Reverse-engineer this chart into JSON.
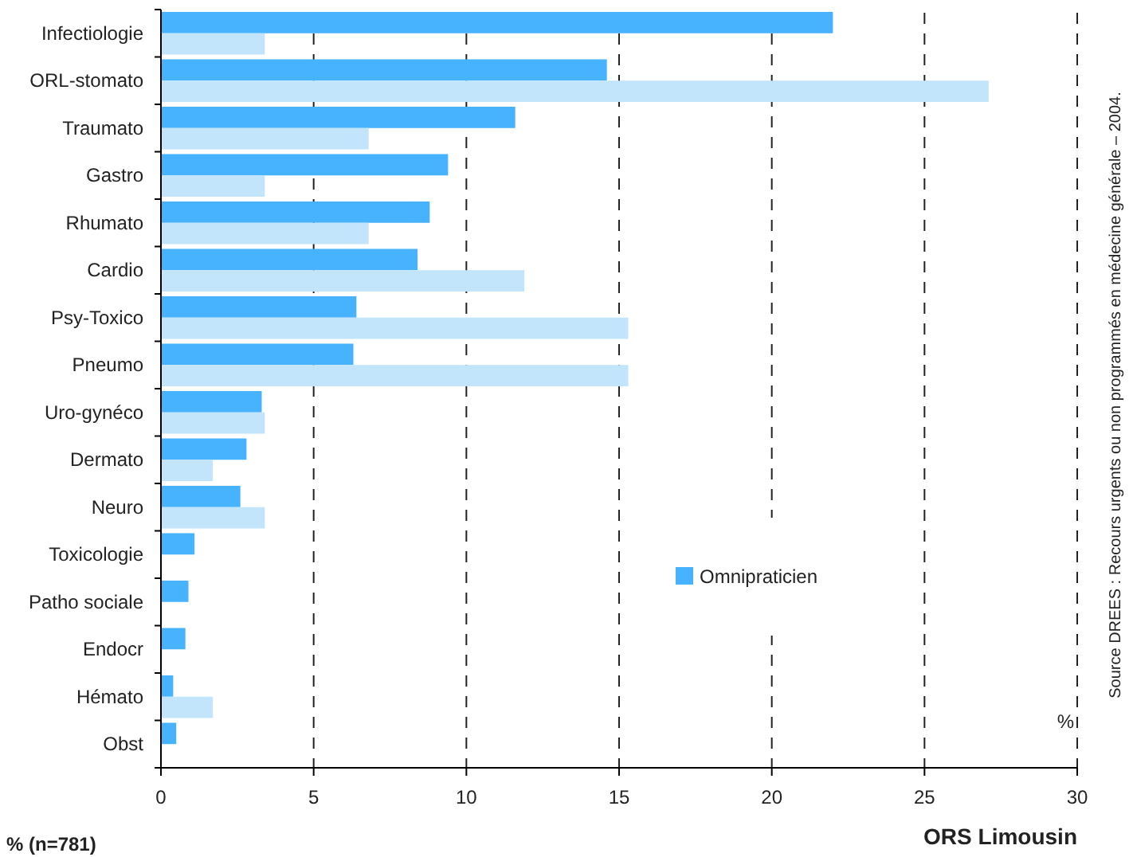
{
  "chart_data": {
    "type": "bar",
    "orientation": "horizontal",
    "categories": [
      "Infectiologie",
      "ORL-stomato",
      "Traumato",
      "Gastro",
      "Rhumato",
      "Cardio",
      "Psy-Toxico",
      "Pneumo",
      "Uro-gynéco",
      "Dermato",
      "Neuro",
      "Toxicologie",
      "Patho sociale",
      "Endocr",
      "Hémato",
      "Obst"
    ],
    "series": [
      {
        "name": "Omnipraticien",
        "color": "#47b3ff",
        "values": [
          22.0,
          14.6,
          11.6,
          9.4,
          8.8,
          8.4,
          6.4,
          6.3,
          3.3,
          2.8,
          2.6,
          1.1,
          0.9,
          0.8,
          0.4,
          0.5
        ]
      },
      {
        "color": "#c2e5fc",
        "values": [
          3.4,
          27.1,
          6.8,
          3.4,
          6.8,
          11.9,
          15.3,
          15.3,
          3.4,
          1.7,
          3.4,
          0,
          0,
          0,
          1.7,
          0
        ]
      }
    ],
    "xlim": [
      0,
      30
    ],
    "xticks": [
      0,
      5,
      10,
      15,
      20,
      25,
      30
    ],
    "xlabel": "%",
    "grid": "x",
    "legend": "right",
    "annotations": [
      "Source DREES : Recours urgents ou non programmés en médecine générale – 2004.",
      "ORS Limousin",
      "% (n=781)"
    ]
  }
}
